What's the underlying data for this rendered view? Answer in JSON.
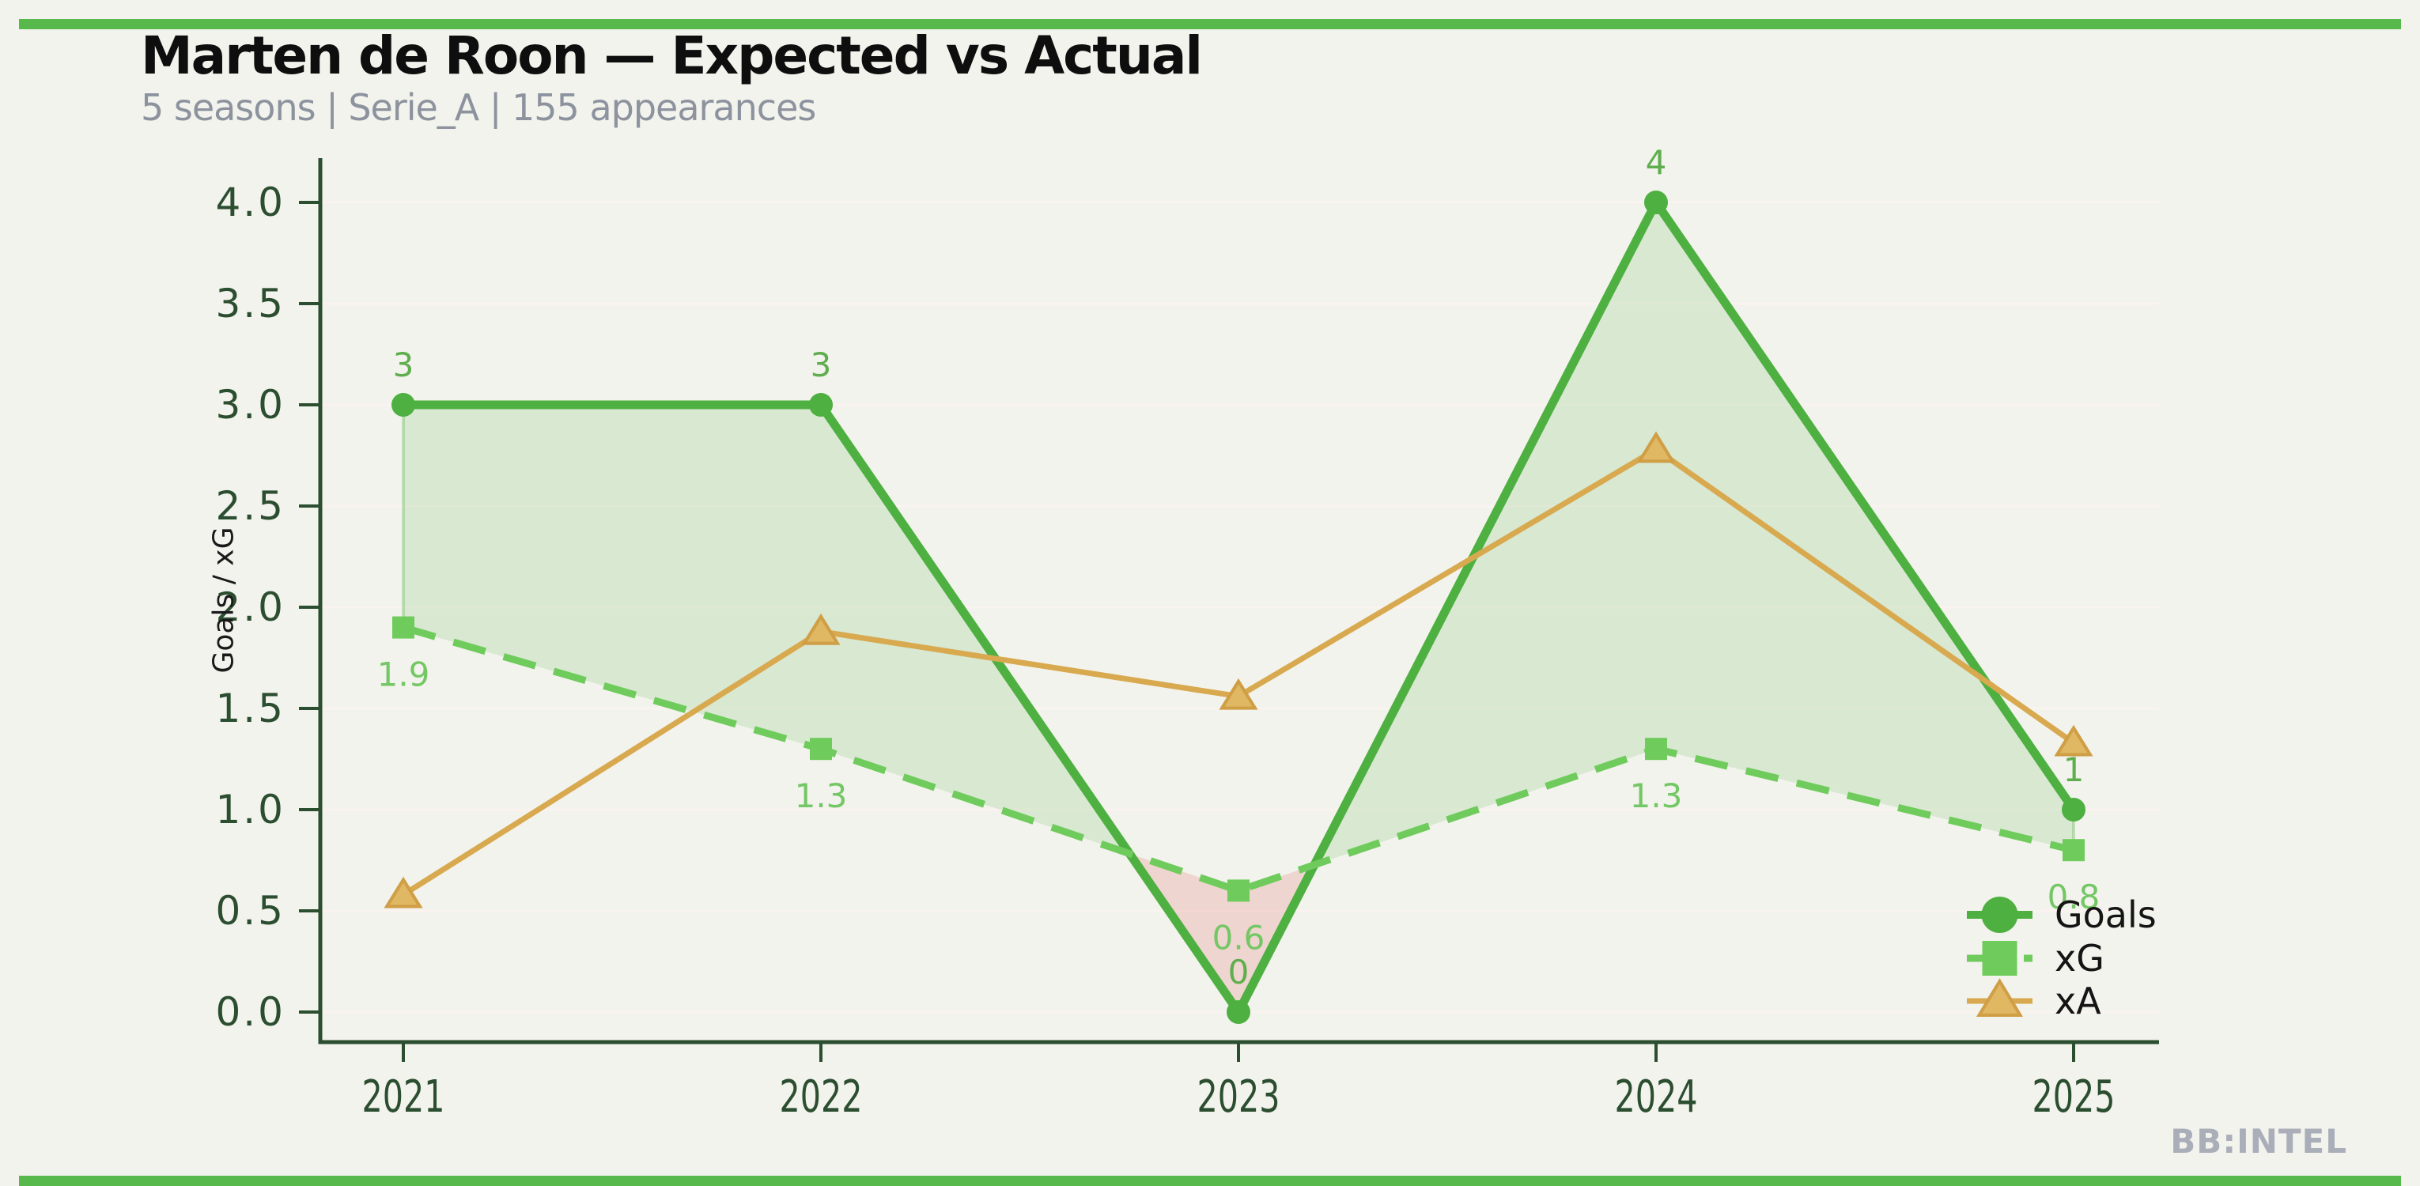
{
  "header": {
    "title": "Marten de Roon — Expected vs Actual",
    "subtitle": "5 seasons | Serie_A | 155 appearances"
  },
  "watermark": "BB:INTEL",
  "colors": {
    "background": "#f2f3ec",
    "accent_bar": "#57b84b",
    "goals": "#4fb042",
    "goals_label": "#5fae4e",
    "xg": "#6fcb5c",
    "xg_label": "#74c765",
    "xa": "#d8a94f",
    "xa_marker_fill": "#e0b763",
    "xa_marker_edge": "#cf9e45",
    "fill_over": "rgba(79,176,66,0.16)",
    "fill_under": "rgba(221,110,104,0.22)",
    "edge_line": "rgba(79,176,66,0.30)",
    "axis": "#2c4e30",
    "grid": "#faf3ef",
    "ylabel_color": "#1a1a1a",
    "legend_text": "#141414",
    "subtitle_color": "#8d939e",
    "watermark_color": "#a9aeb9"
  },
  "chart_data": {
    "type": "line",
    "x": [
      2021,
      2022,
      2023,
      2024,
      2025
    ],
    "series": [
      {
        "name": "Goals",
        "values": [
          3,
          3,
          0,
          4,
          1
        ],
        "labels": [
          "3",
          "3",
          "0",
          "4",
          "1"
        ],
        "marker": "circle",
        "style": "solid"
      },
      {
        "name": "xG",
        "values": [
          1.9,
          1.3,
          0.6,
          1.3,
          0.8
        ],
        "labels": [
          "1.9",
          "1.3",
          "0.6",
          "1.3",
          "0.8"
        ],
        "marker": "square",
        "style": "dashed"
      },
      {
        "name": "xA",
        "values": [
          0.58,
          1.88,
          1.56,
          2.78,
          1.33
        ],
        "labels": [],
        "marker": "triangle",
        "style": "solid"
      }
    ],
    "ylabel": "Goals / xG",
    "yticks": [
      0.0,
      0.5,
      1.0,
      1.5,
      2.0,
      2.5,
      3.0,
      3.5,
      4.0
    ],
    "ylim": [
      0,
      4
    ],
    "grid": "horizontal",
    "legend": [
      "Goals",
      "xG",
      "xA"
    ],
    "legend_position": "lower right",
    "fill_between": "Goals vs xG (green when Goals >= xG, red when Goals < xG)"
  }
}
